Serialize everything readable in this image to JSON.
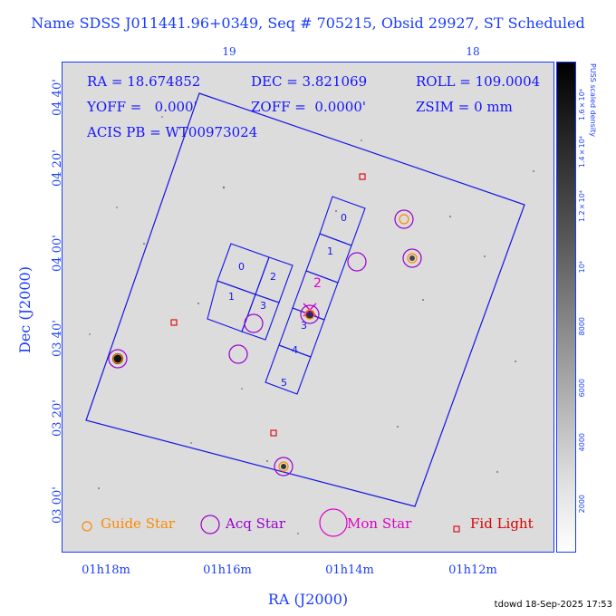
{
  "header": {
    "title": "Name SDSS J011441.96+0349, Seq # 705215, Obsid 29927, ST Scheduled"
  },
  "info": {
    "ra": "RA = 18.674852",
    "dec": "DEC = 3.821069",
    "roll": "ROLL = 109.0004",
    "yoff": "YOFF =   0.000'",
    "zoff": "ZOFF =  0.0000'",
    "zsim": "ZSIM = 0 mm",
    "acis_pb": "ACIS PB = WT00973024"
  },
  "axes": {
    "x_label": "RA (J2000)",
    "y_label": "Dec (J2000)",
    "x_ticks": [
      "01h18m",
      "01h16m",
      "01h14m",
      "01h12m"
    ],
    "top_ticks": [
      "19",
      "18"
    ],
    "y_ticks": [
      "04 40'",
      "04 20'",
      "04 00'",
      "03 40'",
      "03 20'",
      "03 00'"
    ]
  },
  "ccd_labels": [
    "0",
    "1",
    "2",
    "3",
    "4",
    "5",
    "0",
    "2",
    "1",
    "3"
  ],
  "colorbar": {
    "title": "PUSS scaled density",
    "ticks": [
      "1.6×10⁴",
      "1.4×10⁴",
      "1.2×10⁴",
      "10⁴",
      "8000",
      "6000",
      "4000",
      "2000"
    ]
  },
  "legend": {
    "guide": "Guide Star",
    "acq": "Acq Star",
    "mon": "Mon Star",
    "fid": "Fid Light"
  },
  "colors": {
    "guide": "#ff8800",
    "acq": "#9a00d0",
    "mon": "#e000c8",
    "fid": "#dd0000",
    "axis": "#1a3cff",
    "fov": "#1414e6"
  },
  "footer": "tdowd 18-Sep-2025 17:53"
}
